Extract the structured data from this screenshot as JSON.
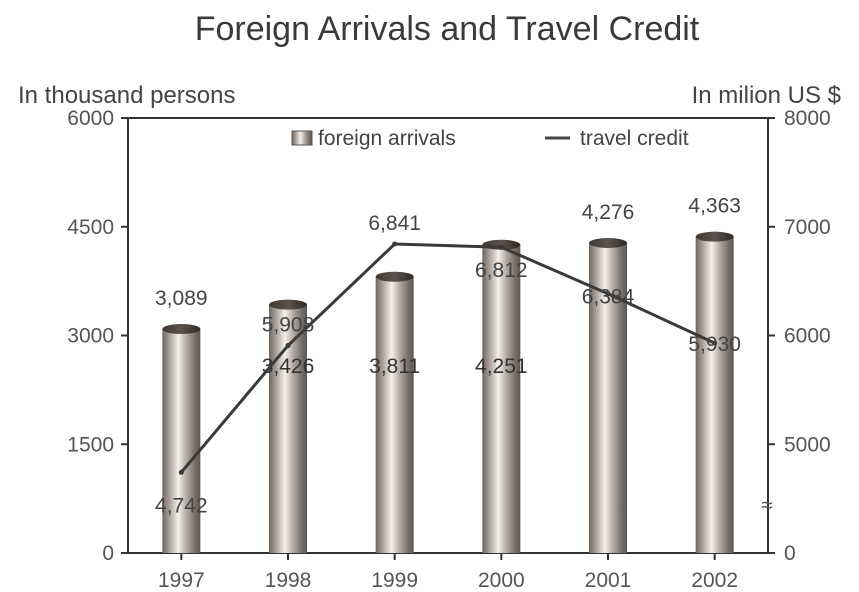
{
  "chart_data": {
    "type": "bar",
    "title": "Foreign Arrivals and Travel Credit",
    "y_left_label": "In thousand persons",
    "y_right_label": "In milion US $",
    "categories": [
      "1997",
      "1998",
      "1999",
      "2000",
      "2001",
      "2002"
    ],
    "y_left_ticks": [
      "0",
      "1500",
      "3000",
      "4500",
      "6000"
    ],
    "y_right_ticks": [
      "0",
      "5000",
      "6000",
      "7000",
      "8000"
    ],
    "y_left_range": [
      0,
      6000
    ],
    "right_axis_break": "≈",
    "legend": {
      "position": "top-right",
      "entries": [
        {
          "label": "foreign arrivals",
          "kind": "bar"
        },
        {
          "label": "travel credit",
          "kind": "line"
        }
      ]
    },
    "series": [
      {
        "name": "foreign arrivals",
        "type": "bar",
        "axis": "left",
        "values": [
          3089,
          3426,
          3811,
          4251,
          4276,
          4363
        ],
        "labels": [
          "3,089",
          "3,426",
          "3,811",
          "4,251",
          "4,276",
          "4,363"
        ]
      },
      {
        "name": "travel credit",
        "type": "line",
        "axis": "right",
        "values": [
          4742,
          5908,
          6841,
          6812,
          6384,
          5930
        ],
        "labels": [
          "4,742",
          "5,908",
          "6,841",
          "6,812",
          "6,384",
          "5,930"
        ]
      }
    ]
  }
}
